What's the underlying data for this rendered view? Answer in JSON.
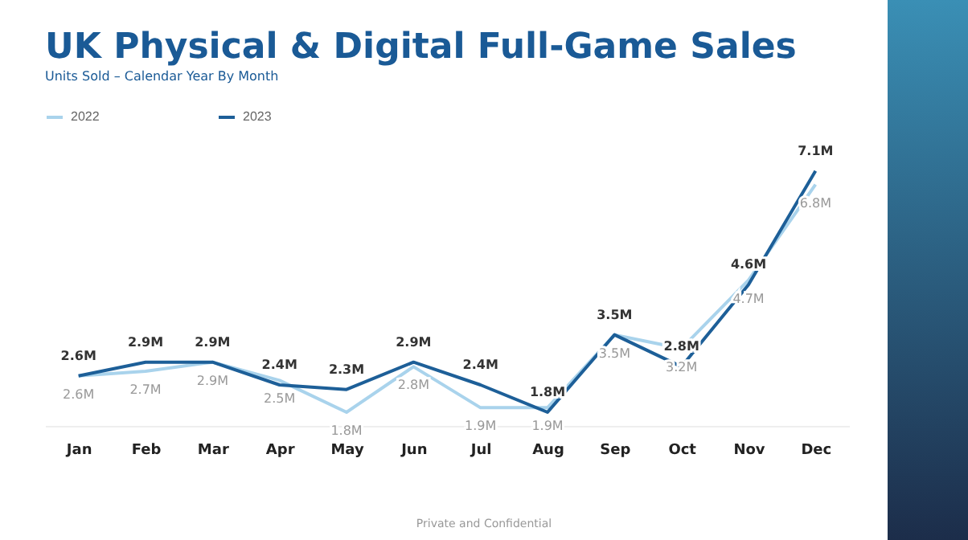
{
  "chart_data": {
    "type": "line",
    "title": "UK Physical & Digital Full-Game Sales",
    "subtitle": "Units Sold – Calendar Year By Month",
    "categories": [
      "Jan",
      "Feb",
      "Mar",
      "Apr",
      "May",
      "Jun",
      "Jul",
      "Aug",
      "Sep",
      "Oct",
      "Nov",
      "Dec"
    ],
    "series": [
      {
        "name": "2022",
        "color": "#a9d3ec",
        "values": [
          2.6,
          2.7,
          2.9,
          2.5,
          1.8,
          2.8,
          1.9,
          1.9,
          3.5,
          3.2,
          4.7,
          6.8
        ],
        "value_labels": [
          "2.6M",
          "2.7M",
          "2.9M",
          "2.5M",
          "1.8M",
          "2.8M",
          "1.9M",
          "1.9M",
          "3.5M",
          "3.2M",
          "4.7M",
          "6.8M"
        ]
      },
      {
        "name": "2023",
        "color": "#1d5f98",
        "values": [
          2.6,
          2.9,
          2.9,
          2.4,
          2.3,
          2.9,
          2.4,
          1.8,
          3.5,
          2.8,
          4.6,
          7.1
        ],
        "value_labels": [
          "2.6M",
          "2.9M",
          "2.9M",
          "2.4M",
          "2.3M",
          "2.9M",
          "2.4M",
          "1.8M",
          "3.5M",
          "2.8M",
          "4.6M",
          "7.1M"
        ]
      }
    ],
    "legend": "top",
    "grid": false,
    "marker": "none",
    "line_style": "solid",
    "annotations": [
      "Private and Confidential"
    ]
  }
}
